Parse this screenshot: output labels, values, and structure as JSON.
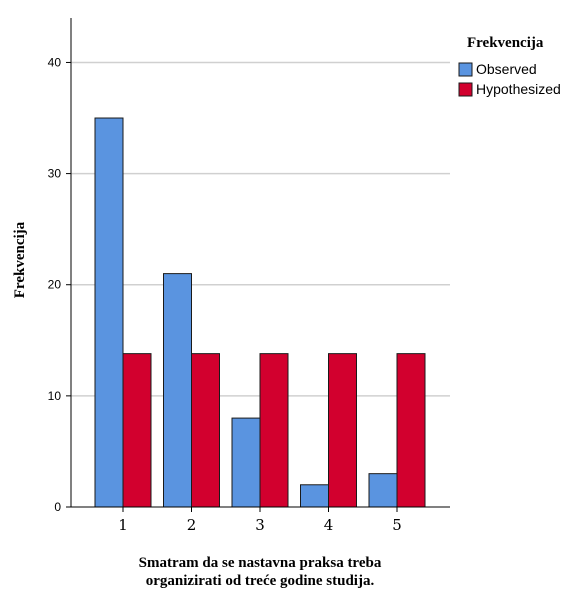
{
  "chart_data": {
    "type": "bar",
    "categories": [
      "1",
      "2",
      "3",
      "4",
      "5"
    ],
    "series": [
      {
        "name": "Observed",
        "values": [
          35,
          21,
          8,
          2,
          3
        ],
        "color": "#5a94e0"
      },
      {
        "name": "Hypothesized",
        "values": [
          13.8,
          13.8,
          13.8,
          13.8,
          13.8
        ],
        "color": "#d2002e"
      }
    ],
    "ylabel": "Frekvencija",
    "xlabel_lines": [
      "Smatram da se nastavna praksa treba",
      "organizirati od treće godine studija."
    ],
    "yticks": [
      0,
      10,
      20,
      30,
      40
    ],
    "ylim": [
      0,
      44
    ],
    "grid": true,
    "legend": {
      "title": "Frekvencija",
      "placement": "top-right"
    }
  }
}
